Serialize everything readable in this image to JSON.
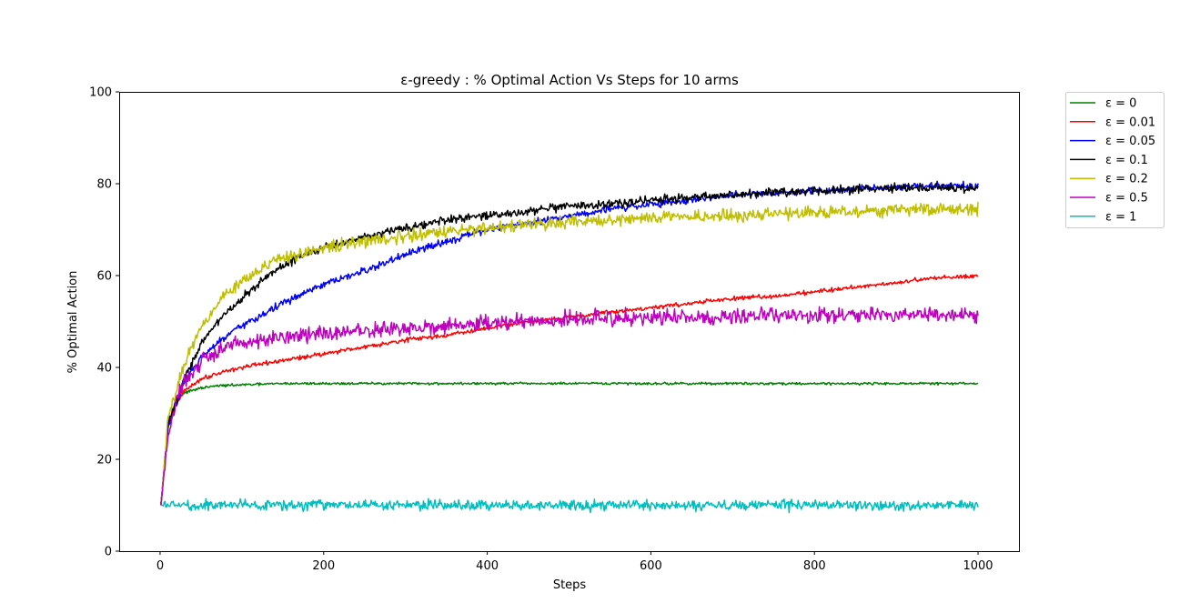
{
  "chart_data": {
    "type": "line",
    "title": "ε-greedy : % Optimal Action Vs Steps for 10 arms",
    "xlabel": "Steps",
    "ylabel": "% Optimal Action",
    "xlim": [
      -50,
      1050
    ],
    "ylim": [
      0,
      100
    ],
    "x_ticks": [
      0,
      200,
      400,
      600,
      800,
      1000
    ],
    "y_ticks": [
      0,
      20,
      40,
      60,
      80,
      100
    ],
    "grid": false,
    "legend_position": "outside-top-right",
    "series": [
      {
        "name": "ε = 0",
        "color": "#008000",
        "noise": 0.2,
        "points": [
          [
            1,
            10
          ],
          [
            10,
            28
          ],
          [
            20,
            33
          ],
          [
            30,
            34.5
          ],
          [
            50,
            35.5
          ],
          [
            70,
            36
          ],
          [
            100,
            36.2
          ],
          [
            150,
            36.5
          ],
          [
            200,
            36.5
          ],
          [
            400,
            36.5
          ],
          [
            1000,
            36.5
          ]
        ]
      },
      {
        "name": "ε = 0.01",
        "color": "#ff0000",
        "noise": 0.35,
        "points": [
          [
            1,
            10
          ],
          [
            10,
            27
          ],
          [
            20,
            32
          ],
          [
            30,
            35
          ],
          [
            50,
            37.5
          ],
          [
            75,
            39
          ],
          [
            100,
            40
          ],
          [
            150,
            41.5
          ],
          [
            200,
            43
          ],
          [
            250,
            44.5
          ],
          [
            300,
            46
          ],
          [
            350,
            47
          ],
          [
            400,
            48.5
          ],
          [
            450,
            50
          ],
          [
            500,
            51
          ],
          [
            550,
            52
          ],
          [
            600,
            53
          ],
          [
            650,
            54
          ],
          [
            700,
            55
          ],
          [
            750,
            55.5
          ],
          [
            800,
            56.5
          ],
          [
            850,
            57.5
          ],
          [
            900,
            58.5
          ],
          [
            950,
            59.5
          ],
          [
            1000,
            60
          ]
        ]
      },
      {
        "name": "ε = 0.05",
        "color": "#0000ff",
        "noise": 0.6,
        "points": [
          [
            1,
            10
          ],
          [
            10,
            27
          ],
          [
            20,
            32
          ],
          [
            30,
            37
          ],
          [
            50,
            42
          ],
          [
            75,
            46
          ],
          [
            100,
            49
          ],
          [
            150,
            54
          ],
          [
            200,
            58
          ],
          [
            250,
            61
          ],
          [
            300,
            64.5
          ],
          [
            350,
            67.5
          ],
          [
            400,
            70
          ],
          [
            450,
            71.5
          ],
          [
            500,
            73
          ],
          [
            550,
            74.5
          ],
          [
            600,
            75.5
          ],
          [
            650,
            76.5
          ],
          [
            700,
            77.5
          ],
          [
            750,
            78
          ],
          [
            800,
            78.5
          ],
          [
            850,
            79
          ],
          [
            900,
            79.3
          ],
          [
            950,
            79.6
          ],
          [
            1000,
            79.5
          ]
        ]
      },
      {
        "name": "ε = 0.1",
        "color": "#000000",
        "noise": 0.7,
        "points": [
          [
            1,
            10
          ],
          [
            10,
            28
          ],
          [
            20,
            33
          ],
          [
            30,
            38
          ],
          [
            50,
            45
          ],
          [
            75,
            51
          ],
          [
            100,
            55
          ],
          [
            125,
            59
          ],
          [
            150,
            62
          ],
          [
            175,
            64.5
          ],
          [
            200,
            66
          ],
          [
            250,
            68.5
          ],
          [
            300,
            70.5
          ],
          [
            350,
            72
          ],
          [
            400,
            73
          ],
          [
            450,
            74
          ],
          [
            500,
            75
          ],
          [
            550,
            75.5
          ],
          [
            600,
            76.5
          ],
          [
            650,
            77
          ],
          [
            700,
            77.5
          ],
          [
            750,
            78
          ],
          [
            800,
            78.5
          ],
          [
            850,
            78.8
          ],
          [
            900,
            79
          ],
          [
            950,
            79.2
          ],
          [
            1000,
            79
          ]
        ]
      },
      {
        "name": "ε = 0.2",
        "color": "#bfbf00",
        "noise": 1.0,
        "points": [
          [
            1,
            10
          ],
          [
            10,
            29
          ],
          [
            20,
            35
          ],
          [
            30,
            41
          ],
          [
            50,
            49
          ],
          [
            75,
            55
          ],
          [
            100,
            59
          ],
          [
            125,
            62
          ],
          [
            150,
            63.5
          ],
          [
            200,
            66
          ],
          [
            250,
            67.5
          ],
          [
            300,
            68.5
          ],
          [
            350,
            69.5
          ],
          [
            400,
            70.5
          ],
          [
            450,
            71
          ],
          [
            500,
            71.5
          ],
          [
            550,
            72
          ],
          [
            600,
            72.5
          ],
          [
            650,
            73
          ],
          [
            700,
            73
          ],
          [
            750,
            73.5
          ],
          [
            800,
            73.8
          ],
          [
            850,
            74
          ],
          [
            900,
            74.2
          ],
          [
            950,
            74.5
          ],
          [
            1000,
            74.5
          ]
        ]
      },
      {
        "name": "ε = 0.5",
        "color": "#bf00bf",
        "noise": 1.3,
        "points": [
          [
            1,
            10
          ],
          [
            10,
            25
          ],
          [
            20,
            33
          ],
          [
            30,
            37
          ],
          [
            50,
            41
          ],
          [
            75,
            44
          ],
          [
            100,
            45.5
          ],
          [
            150,
            46.5
          ],
          [
            200,
            47.5
          ],
          [
            250,
            48
          ],
          [
            300,
            48.5
          ],
          [
            350,
            49
          ],
          [
            400,
            49.5
          ],
          [
            450,
            50
          ],
          [
            500,
            50.5
          ],
          [
            600,
            50.8
          ],
          [
            700,
            51
          ],
          [
            800,
            51.2
          ],
          [
            900,
            51.5
          ],
          [
            1000,
            51.5
          ]
        ]
      },
      {
        "name": "ε = 1",
        "color": "#00bfbf",
        "noise": 0.85,
        "points": [
          [
            1,
            10
          ],
          [
            1000,
            10
          ]
        ]
      }
    ]
  }
}
